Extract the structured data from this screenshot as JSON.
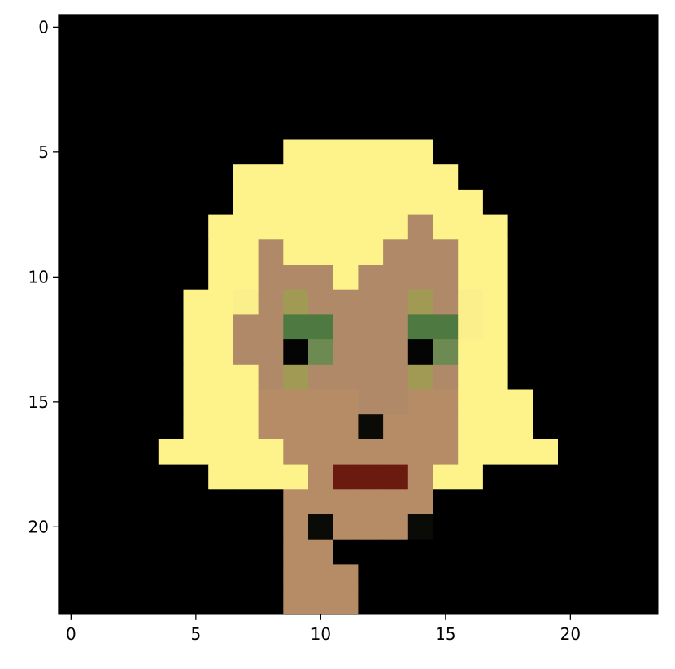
{
  "chart_data": {
    "type": "heatmap",
    "title": "",
    "xlabel": "",
    "ylabel": "",
    "xlim": [
      -0.5,
      23.5
    ],
    "ylim": [
      23.5,
      -0.5
    ],
    "x_ticks": [
      0,
      5,
      10,
      15,
      20
    ],
    "y_ticks": [
      0,
      5,
      10,
      15,
      20
    ],
    "x_tick_labels": [
      "0",
      "5",
      "10",
      "15",
      "20"
    ],
    "y_tick_labels": [
      "0",
      "5",
      "10",
      "15",
      "20"
    ],
    "grid": false,
    "background_color": "#000000",
    "palette": {
      "K": "#000000",
      "Y": "#fdf38a",
      "y": "#fbef8c",
      "S": "#b08a68",
      "s": "#b58c66",
      "G": "#4e7a42",
      "g": "#6c8a52",
      "O": "#a09a55",
      "P": "#040404",
      "R": "#6a1a0e",
      "D": "#0a0a06"
    },
    "rows": [
      "KKKKKKKKKKKKKKKKKKKKKKKK",
      "KKKKKKKKKKKKKKKKKKKKKKKK",
      "KKKKKKKKKKKKKKKKKKKKKKKK",
      "KKKKKKKKKKKKKKKKKKKKKKKK",
      "KKKKKKKKKKKKKKKKKKKKKKKK",
      "KKKKKKKKKKKKKKKKKKKKKKKK",
      "KKKKKKKKKKKKKKKKKKKKKKKK",
      "KKKKKKKKKKKKKKKKKKKKKKKK",
      "KKKKKKKKKKKKKKKKKKKKKKKK",
      "KKKKKKKKKKKKKKKKKKKKKKKK",
      "KKKKKKKKKKKKKKKKKKKKKKKK",
      "KKKKKKKKKKKKKKKKKKKKKKKK",
      "KKKKKKKKKKKKKKKKKKKKKKKK",
      "KKKKKKKKKKKKKKKKKKKKKKKK",
      "KKKKKKKKKKKKKKKKKKKKKKKK",
      "KKKKKKKKKKKKKKKKKKKKKKKK",
      "KKKKKKKKKKKKKKKKKKKKKKKK",
      "KKKKKKKKKKKKKKKKKKKKKKKK",
      "KKKKKKKKKKKKKKKKKKKKKKKK",
      "KKKKKKKKKKKKKKKKKKKKKKKK",
      "KKKKKKKKKKKKKKKKKKKKKKKK",
      "KKKKKKKKKKKKKKKKKKKKKKKK",
      "KKKKKKKKKKKKKKKKKKKKKKKK",
      "KKKKKKKKKKKKKKKKKKKKKKKK"
    ],
    "overrides": {
      "5": {
        "9": "Y",
        "10": "Y",
        "11": "Y",
        "12": "Y",
        "13": "Y",
        "14": "Y"
      },
      "6": {
        "7": "Y",
        "8": "Y",
        "9": "Y",
        "10": "Y",
        "11": "Y",
        "12": "Y",
        "13": "Y",
        "14": "Y",
        "15": "Y"
      },
      "7": {
        "7": "Y",
        "8": "Y",
        "9": "Y",
        "10": "Y",
        "11": "Y",
        "12": "Y",
        "13": "Y",
        "14": "Y",
        "15": "Y",
        "16": "Y"
      },
      "8": {
        "6": "Y",
        "7": "Y",
        "8": "Y",
        "9": "Y",
        "10": "Y",
        "11": "Y",
        "12": "Y",
        "13": "Y",
        "14": "S",
        "15": "Y",
        "16": "Y",
        "17": "Y"
      },
      "9": {
        "6": "Y",
        "7": "Y",
        "8": "S",
        "9": "Y",
        "10": "Y",
        "11": "Y",
        "12": "Y",
        "13": "S",
        "14": "S",
        "15": "S",
        "16": "Y",
        "17": "Y"
      },
      "10": {
        "6": "Y",
        "7": "Y",
        "8": "S",
        "9": "S",
        "10": "S",
        "11": "Y",
        "12": "S",
        "13": "S",
        "14": "S",
        "15": "S",
        "16": "Y",
        "17": "Y"
      },
      "11": {
        "5": "Y",
        "6": "Y",
        "7": "y",
        "8": "S",
        "9": "O",
        "10": "S",
        "11": "S",
        "12": "S",
        "13": "S",
        "14": "O",
        "15": "S",
        "16": "y",
        "17": "Y"
      },
      "12": {
        "5": "Y",
        "6": "Y",
        "7": "S",
        "8": "S",
        "9": "G",
        "10": "G",
        "11": "S",
        "12": "S",
        "13": "S",
        "14": "G",
        "15": "G",
        "16": "y",
        "17": "Y"
      },
      "13": {
        "5": "Y",
        "6": "Y",
        "7": "S",
        "8": "S",
        "9": "P",
        "10": "g",
        "11": "S",
        "12": "S",
        "13": "S",
        "14": "P",
        "15": "g",
        "16": "Y",
        "17": "Y"
      },
      "14": {
        "5": "Y",
        "6": "Y",
        "7": "Y",
        "8": "S",
        "9": "O",
        "10": "S",
        "11": "S",
        "12": "S",
        "13": "S",
        "14": "O",
        "15": "S",
        "16": "Y",
        "17": "Y"
      },
      "15": {
        "5": "Y",
        "6": "Y",
        "7": "Y",
        "8": "s",
        "9": "s",
        "10": "s",
        "11": "s",
        "12": "S",
        "13": "S",
        "14": "s",
        "15": "s",
        "16": "Y",
        "17": "Y",
        "18": "Y"
      },
      "16": {
        "5": "Y",
        "6": "Y",
        "7": "Y",
        "8": "s",
        "9": "s",
        "10": "s",
        "11": "s",
        "12": "D",
        "13": "s",
        "14": "s",
        "15": "s",
        "16": "Y",
        "17": "Y",
        "18": "Y"
      },
      "17": {
        "4": "Y",
        "5": "Y",
        "6": "Y",
        "7": "Y",
        "8": "Y",
        "9": "s",
        "10": "s",
        "11": "s",
        "12": "s",
        "13": "s",
        "14": "s",
        "15": "s",
        "16": "Y",
        "17": "Y",
        "18": "Y",
        "19": "Y"
      },
      "18": {
        "6": "Y",
        "7": "Y",
        "8": "Y",
        "9": "Y",
        "10": "s",
        "11": "R",
        "12": "R",
        "13": "R",
        "14": "s",
        "15": "Y",
        "16": "Y"
      },
      "19": {
        "9": "s",
        "10": "s",
        "11": "s",
        "12": "s",
        "13": "s",
        "14": "s"
      },
      "20": {
        "9": "s",
        "10": "D",
        "11": "s",
        "12": "s",
        "13": "s",
        "14": "D"
      },
      "21": {
        "9": "s",
        "10": "s"
      },
      "22": {
        "9": "s",
        "10": "s",
        "11": "s"
      },
      "23": {
        "9": "s",
        "10": "s",
        "11": "s"
      }
    }
  }
}
